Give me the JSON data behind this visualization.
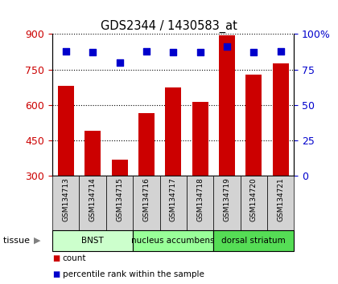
{
  "title": "GDS2344 / 1430583_at",
  "samples": [
    "GSM134713",
    "GSM134714",
    "GSM134715",
    "GSM134716",
    "GSM134717",
    "GSM134718",
    "GSM134719",
    "GSM134720",
    "GSM134721"
  ],
  "counts": [
    680,
    490,
    370,
    565,
    675,
    615,
    895,
    730,
    775
  ],
  "percentiles": [
    88,
    87,
    80,
    88,
    87,
    87,
    91,
    87,
    88
  ],
  "ylim_left": [
    300,
    900
  ],
  "ylim_right": [
    0,
    100
  ],
  "yticks_left": [
    300,
    450,
    600,
    750,
    900
  ],
  "yticks_right": [
    0,
    25,
    50,
    75,
    100
  ],
  "bar_color": "#cc0000",
  "dot_color": "#0000cc",
  "bg_samples": "#d3d3d3",
  "tissue_groups": [
    {
      "label": "BNST",
      "start": 0,
      "end": 3,
      "color": "#ccffcc"
    },
    {
      "label": "nucleus accumbens",
      "start": 3,
      "end": 6,
      "color": "#99ff99"
    },
    {
      "label": "dorsal striatum",
      "start": 6,
      "end": 9,
      "color": "#55dd55"
    }
  ],
  "tissue_label": "tissue",
  "legend_items": [
    {
      "label": "count",
      "color": "#cc0000"
    },
    {
      "label": "percentile rank within the sample",
      "color": "#0000cc"
    }
  ],
  "bar_width": 0.6,
  "dot_size": 40
}
